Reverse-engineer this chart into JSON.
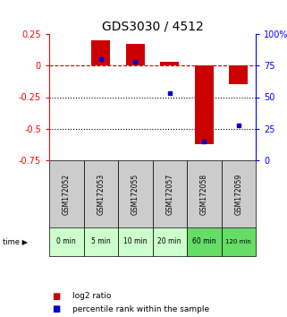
{
  "title": "GDS3030 / 4512",
  "categories": [
    "GSM172052",
    "GSM172053",
    "GSM172055",
    "GSM172057",
    "GSM172058",
    "GSM172059"
  ],
  "time_labels": [
    "0 min",
    "5 min",
    "10 min",
    "20 min",
    "60 min",
    "120 min"
  ],
  "log2_ratio": [
    0.0,
    0.2,
    0.17,
    0.03,
    -0.62,
    -0.15
  ],
  "percentile_rank": [
    null,
    80,
    78,
    53,
    15,
    28
  ],
  "ylim_left": [
    -0.75,
    0.25
  ],
  "ylim_right": [
    0,
    100
  ],
  "yticks_left": [
    0.25,
    0.0,
    -0.25,
    -0.5,
    -0.75
  ],
  "yticks_right": [
    100,
    75,
    50,
    25,
    0
  ],
  "bar_color": "#cc0000",
  "dot_color": "#0000cc",
  "title_fontsize": 10,
  "bg_color_gsm": "#cccccc",
  "bg_color_time_light": "#ccffcc",
  "bg_color_time_dark": "#66dd66",
  "hline_color_dashed": "#cc0000",
  "hline_color_dotted": "#000000",
  "time_colors": [
    "#ccffcc",
    "#ccffcc",
    "#ccffcc",
    "#ccffcc",
    "#66dd66",
    "#66dd66"
  ]
}
